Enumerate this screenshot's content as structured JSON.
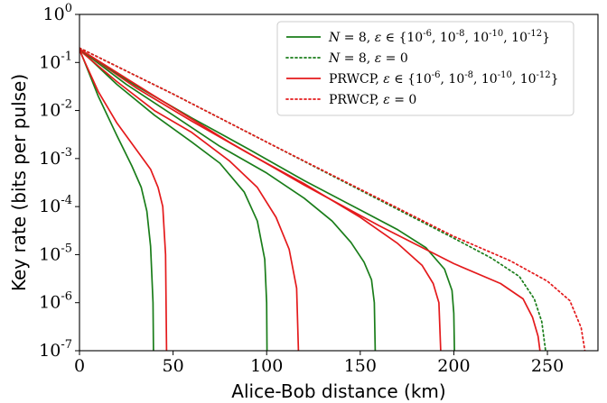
{
  "chart_data": {
    "type": "line",
    "xlabel": "Alice-Bob distance (km)",
    "ylabel": "Key rate (bits per pulse)",
    "xlim": [
      0,
      277
    ],
    "ylim_log10": [
      -7,
      0
    ],
    "y_scale": "log",
    "grid": false,
    "legend_position": "top-right",
    "x_ticks": [
      "0",
      "50",
      "100",
      "150",
      "200",
      "250"
    ],
    "y_ticks": [
      "10^0",
      "10^-1",
      "10^-2",
      "10^-3",
      "10^-4",
      "10^-5",
      "10^-6",
      "10^-7"
    ],
    "legend": [
      {
        "label": "N = 8, ε ∈ {10^-6, 10^-8, 10^-10, 10^-12}",
        "color": "#1a7d1a",
        "style": "solid"
      },
      {
        "label": "N = 8, ε = 0",
        "color": "#1a7d1a",
        "style": "dotted"
      },
      {
        "label": "PRWCP, ε ∈ {10^-6, 10^-8, 10^-10, 10^-12}",
        "color": "#e41a1c",
        "style": "solid"
      },
      {
        "label": "PRWCP, ε = 0",
        "color": "#e41a1c",
        "style": "dotted"
      }
    ],
    "series": [
      {
        "name": "N = 8, ε = 10^-6",
        "color": "#1a7d1a",
        "style": "solid",
        "points": [
          [
            0,
            0.19
          ],
          [
            10,
            0.02
          ],
          [
            20,
            0.003
          ],
          [
            28,
            0.0007
          ],
          [
            33,
            0.00025
          ],
          [
            36,
            8e-05
          ],
          [
            38,
            1.5e-05
          ],
          [
            39.3,
            1e-06
          ],
          [
            39.5,
            1e-07
          ]
        ]
      },
      {
        "name": "PRWCP, ε = 10^-6",
        "color": "#e41a1c",
        "style": "solid",
        "points": [
          [
            0,
            0.18
          ],
          [
            10,
            0.025
          ],
          [
            20,
            0.0055
          ],
          [
            30,
            0.0016
          ],
          [
            38,
            0.0006
          ],
          [
            42,
            0.00025
          ],
          [
            44.5,
            0.0001
          ],
          [
            46,
            1e-05
          ],
          [
            46.5,
            1e-07
          ]
        ]
      },
      {
        "name": "N = 8, ε = 10^-8",
        "color": "#1a7d1a",
        "style": "solid",
        "points": [
          [
            0,
            0.19
          ],
          [
            20,
            0.035
          ],
          [
            40,
            0.008
          ],
          [
            60,
            0.0022
          ],
          [
            75,
            0.0008
          ],
          [
            88,
            0.0002
          ],
          [
            95,
            5e-05
          ],
          [
            99,
            8e-06
          ],
          [
            100,
            1e-06
          ],
          [
            100.2,
            1e-07
          ]
        ]
      },
      {
        "name": "PRWCP, ε = 10^-8",
        "color": "#e41a1c",
        "style": "solid",
        "points": [
          [
            0,
            0.18
          ],
          [
            20,
            0.04
          ],
          [
            40,
            0.01
          ],
          [
            60,
            0.0035
          ],
          [
            80,
            0.0009
          ],
          [
            95,
            0.00025
          ],
          [
            105,
            6e-05
          ],
          [
            112,
            1.3e-05
          ],
          [
            116,
            2e-06
          ],
          [
            117,
            1e-07
          ]
        ]
      },
      {
        "name": "N = 8, ε = 10^-10",
        "color": "#1a7d1a",
        "style": "solid",
        "points": [
          [
            0,
            0.19
          ],
          [
            25,
            0.035
          ],
          [
            50,
            0.008
          ],
          [
            75,
            0.0018
          ],
          [
            100,
            0.0005
          ],
          [
            120,
            0.00015
          ],
          [
            135,
            5e-05
          ],
          [
            145,
            1.8e-05
          ],
          [
            152,
            7e-06
          ],
          [
            156,
            3e-06
          ],
          [
            157.5,
            1e-06
          ],
          [
            158,
            1e-07
          ]
        ]
      },
      {
        "name": "PRWCP, ε = 10^-10",
        "color": "#e41a1c",
        "style": "solid",
        "points": [
          [
            0,
            0.19
          ],
          [
            30,
            0.03
          ],
          [
            60,
            0.006
          ],
          [
            90,
            0.0013
          ],
          [
            120,
            0.0003
          ],
          [
            150,
            6e-05
          ],
          [
            170,
            1.7e-05
          ],
          [
            183,
            6e-06
          ],
          [
            189,
            2.5e-06
          ],
          [
            192,
            1e-06
          ],
          [
            193,
            1e-07
          ]
        ]
      },
      {
        "name": "N = 8, ε = 10^-12",
        "color": "#1a7d1a",
        "style": "solid",
        "points": [
          [
            0,
            0.19
          ],
          [
            30,
            0.033
          ],
          [
            60,
            0.007
          ],
          [
            90,
            0.0016
          ],
          [
            120,
            0.00035
          ],
          [
            150,
            8.5e-05
          ],
          [
            170,
            3.3e-05
          ],
          [
            185,
            1.4e-05
          ],
          [
            195,
            5e-06
          ],
          [
            199,
            1.8e-06
          ],
          [
            200,
            6e-07
          ],
          [
            200.3,
            1e-07
          ]
        ]
      },
      {
        "name": "PRWCP, ε = 10^-12",
        "color": "#e41a1c",
        "style": "solid",
        "points": [
          [
            0,
            0.19
          ],
          [
            40,
            0.02
          ],
          [
            80,
            0.0022
          ],
          [
            120,
            0.00028
          ],
          [
            160,
            4e-05
          ],
          [
            200,
            6.5e-06
          ],
          [
            225,
            2.5e-06
          ],
          [
            237,
            1.2e-06
          ],
          [
            242,
            5e-07
          ],
          [
            245,
            2e-07
          ],
          [
            246,
            1e-07
          ]
        ]
      },
      {
        "name": "N = 8, ε = 0",
        "color": "#1a7d1a",
        "style": "dotted",
        "points": [
          [
            0,
            0.2
          ],
          [
            50,
            0.022
          ],
          [
            100,
            0.0022
          ],
          [
            150,
            0.00022
          ],
          [
            200,
            2.2e-05
          ],
          [
            220,
            8.5e-06
          ],
          [
            235,
            3.5e-06
          ],
          [
            243,
            1.2e-06
          ],
          [
            247,
            4e-07
          ],
          [
            249,
            1e-07
          ]
        ]
      },
      {
        "name": "PRWCP, ε = 0",
        "color": "#e41a1c",
        "style": "dotted",
        "points": [
          [
            0,
            0.2
          ],
          [
            50,
            0.022
          ],
          [
            100,
            0.0022
          ],
          [
            150,
            0.00023
          ],
          [
            200,
            2.4e-05
          ],
          [
            230,
            7.5e-06
          ],
          [
            250,
            2.8e-06
          ],
          [
            262,
            1.1e-06
          ],
          [
            268,
            3e-07
          ],
          [
            270,
            1e-07
          ]
        ]
      }
    ]
  }
}
